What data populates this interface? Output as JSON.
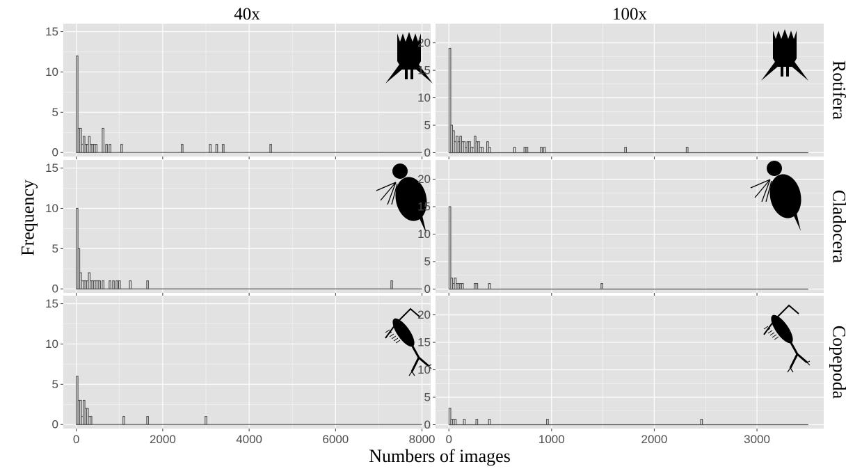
{
  "figure": {
    "xlabel": "Numbers of images",
    "ylabel": "Frequency",
    "columns": [
      "40x",
      "100x"
    ],
    "rows": [
      "Rotifera",
      "Cladocera",
      "Copepoda"
    ],
    "colors": {
      "panel_background": "#e2e2e2",
      "grid": "#ffffff",
      "bars": "#4d4d4d",
      "silhouette": "#000000",
      "tick_text": "#4d4d4d"
    }
  },
  "chart_data": [
    {
      "type": "bar",
      "title": "40x",
      "row": "Rotifera",
      "xlim": [
        -300,
        8200
      ],
      "ylim": [
        -0.5,
        16
      ],
      "xticks": [
        0,
        2000,
        4000,
        6000,
        8000
      ],
      "yticks": [
        0,
        5,
        10,
        15
      ],
      "binwidth": 40,
      "xrange": [
        0,
        8000
      ],
      "x": [
        20,
        60,
        100,
        140,
        180,
        220,
        260,
        300,
        340,
        380,
        420,
        460,
        620,
        700,
        780,
        1050,
        2450,
        3100,
        3250,
        3400,
        4500
      ],
      "values": [
        12,
        3,
        3,
        1,
        2,
        1,
        1,
        2,
        1,
        1,
        1,
        1,
        3,
        1,
        1,
        1,
        1,
        1,
        1,
        1,
        1
      ],
      "icon": "rotifer-icon"
    },
    {
      "type": "bar",
      "title": "100x",
      "row": "Rotifera",
      "xlim": [
        -130,
        3650
      ],
      "ylim": [
        -0.7,
        23.5
      ],
      "xticks": [
        0,
        1000,
        2000,
        3000
      ],
      "yticks": [
        0,
        5,
        10,
        15,
        20
      ],
      "binwidth": 17.5,
      "xrange": [
        0,
        3500
      ],
      "x": [
        10,
        27,
        45,
        62,
        80,
        97,
        115,
        132,
        150,
        167,
        185,
        202,
        220,
        237,
        255,
        272,
        290,
        307,
        325,
        377,
        395,
        640,
        740,
        760,
        900,
        930,
        1720,
        2320
      ],
      "values": [
        19,
        5,
        4,
        2,
        3,
        2,
        3,
        2,
        2,
        1,
        2,
        2,
        1,
        1,
        3,
        2,
        2,
        1,
        1,
        2,
        1,
        1,
        1,
        1,
        1,
        1,
        1,
        1
      ],
      "icon": "rotifer-icon"
    },
    {
      "type": "bar",
      "title": "40x",
      "row": "Cladocera",
      "xlim": [
        -300,
        8200
      ],
      "ylim": [
        -0.5,
        16
      ],
      "xticks": [
        0,
        2000,
        4000,
        6000,
        8000
      ],
      "yticks": [
        0,
        5,
        10,
        15
      ],
      "binwidth": 40,
      "xrange": [
        0,
        8000
      ],
      "x": [
        20,
        60,
        100,
        140,
        180,
        220,
        260,
        300,
        340,
        380,
        420,
        460,
        500,
        540,
        620,
        780,
        860,
        940,
        1000,
        1250,
        1650,
        7300
      ],
      "values": [
        10,
        5,
        2,
        1,
        1,
        1,
        1,
        2,
        1,
        1,
        1,
        1,
        1,
        1,
        1,
        1,
        1,
        1,
        1,
        1,
        1,
        1
      ],
      "icon": "cladoceran-icon"
    },
    {
      "type": "bar",
      "title": "100x",
      "row": "Cladocera",
      "xlim": [
        -130,
        3650
      ],
      "ylim": [
        -0.7,
        23.5
      ],
      "xticks": [
        0,
        1000,
        2000,
        3000
      ],
      "yticks": [
        0,
        5,
        10,
        15,
        20
      ],
      "binwidth": 17.5,
      "xrange": [
        0,
        3500
      ],
      "x": [
        10,
        27,
        45,
        62,
        80,
        97,
        115,
        132,
        255,
        272,
        395,
        1490
      ],
      "values": [
        15,
        2,
        1,
        2,
        1,
        1,
        1,
        1,
        1,
        1,
        1,
        1
      ],
      "icon": "cladoceran-icon"
    },
    {
      "type": "bar",
      "title": "40x",
      "row": "Copepoda",
      "xlim": [
        -300,
        8200
      ],
      "ylim": [
        -0.5,
        16
      ],
      "xticks": [
        0,
        2000,
        4000,
        6000,
        8000
      ],
      "yticks": [
        0,
        5,
        10,
        15
      ],
      "binwidth": 40,
      "xrange": [
        0,
        8000
      ],
      "x": [
        20,
        60,
        100,
        140,
        180,
        220,
        260,
        300,
        340,
        1100,
        1650,
        3000
      ],
      "values": [
        6,
        3,
        3,
        1,
        3,
        2,
        2,
        1,
        1,
        1,
        1,
        1
      ],
      "icon": "copepod-icon"
    },
    {
      "type": "bar",
      "title": "100x",
      "row": "Copepoda",
      "xlim": [
        -130,
        3650
      ],
      "ylim": [
        -0.7,
        23.5
      ],
      "xticks": [
        0,
        1000,
        2000,
        3000
      ],
      "yticks": [
        0,
        5,
        10,
        15,
        20
      ],
      "binwidth": 17.5,
      "xrange": [
        0,
        3500
      ],
      "x": [
        10,
        27,
        45,
        62,
        150,
        272,
        395,
        960,
        2460
      ],
      "values": [
        3,
        1,
        1,
        1,
        1,
        1,
        1,
        1,
        1
      ],
      "icon": "copepod-icon"
    }
  ]
}
